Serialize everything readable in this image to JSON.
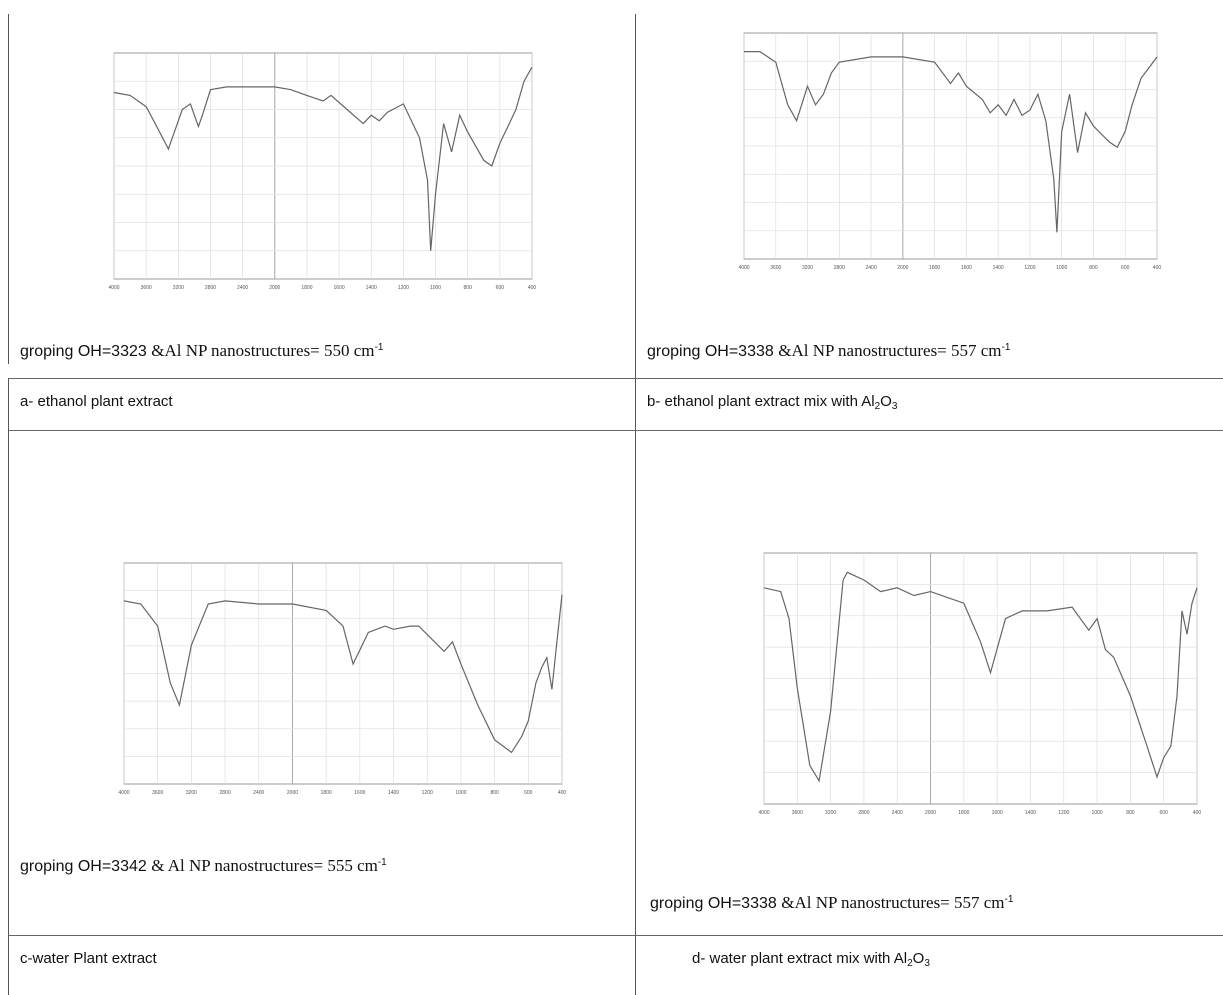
{
  "panels": [
    {
      "id": "a",
      "caption": {
        "prefix": "groping OH=3323",
        "mid": "&Al NP nanostructures= 550 cm",
        "sup": "-1"
      },
      "label": {
        "prefix": "a- ethanol plant extract",
        "sub": "",
        "suffix": ""
      }
    },
    {
      "id": "b",
      "caption": {
        "prefix": "groping OH=3338",
        "mid": "&Al NP nanostructures= 557 cm",
        "sup": "-1"
      },
      "label": {
        "prefix": "b- ethanol plant extract mix with Al",
        "sub": "2",
        "mid": "O",
        "sub2": "3"
      }
    },
    {
      "id": "c",
      "caption": {
        "prefix": "groping OH=3342 ",
        "mid": "& Al NP nanostructures= 555 cm",
        "sup": "-1"
      },
      "label": {
        "prefix": "c-water Plant extract",
        "sub": "",
        "suffix": ""
      }
    },
    {
      "id": "d",
      "caption": {
        "prefix": "groping OH=3338",
        "mid": "&Al NP nanostructures= 557 cm",
        "sup": "-1"
      },
      "label": {
        "prefix": "d- water  plant extract mix with Al",
        "sub": "2",
        "mid": "O",
        "sub2": "3"
      }
    }
  ],
  "chart_data": [
    {
      "type": "line",
      "panel": "a",
      "xlim": [
        4000,
        400
      ],
      "x_ticks": [
        "4000",
        "3600",
        "3200",
        "2800",
        "2400",
        "2000",
        "1800",
        "1600",
        "1400",
        "1200",
        "1000",
        "800",
        "600",
        "400"
      ],
      "x": [
        4000,
        3800,
        3600,
        3450,
        3323,
        3150,
        3050,
        2950,
        2900,
        2800,
        2600,
        2000,
        1900,
        1800,
        1700,
        1650,
        1550,
        1450,
        1400,
        1350,
        1300,
        1200,
        1100,
        1050,
        1030,
        1000,
        950,
        900,
        850,
        800,
        700,
        650,
        600,
        550,
        500,
        450,
        400
      ],
      "y": [
        96,
        95,
        91,
        83,
        76,
        90,
        92,
        84,
        88,
        97,
        98,
        98,
        97,
        95,
        93,
        95,
        90,
        85,
        88,
        86,
        89,
        92,
        80,
        65,
        40,
        60,
        85,
        75,
        88,
        82,
        72,
        70,
        78,
        84,
        90,
        100,
        105
      ],
      "ylim": [
        30,
        110
      ]
    },
    {
      "type": "line",
      "panel": "b",
      "xlim": [
        4000,
        400
      ],
      "x_ticks": [
        "4000",
        "3600",
        "3200",
        "2800",
        "2400",
        "2000",
        "1800",
        "1600",
        "1400",
        "1200",
        "1000",
        "800",
        "600",
        "400"
      ],
      "x": [
        4000,
        3800,
        3600,
        3450,
        3338,
        3200,
        3100,
        3000,
        2900,
        2800,
        2400,
        2000,
        1800,
        1700,
        1650,
        1600,
        1500,
        1450,
        1400,
        1350,
        1300,
        1250,
        1200,
        1150,
        1100,
        1050,
        1030,
        1000,
        950,
        900,
        850,
        800,
        700,
        650,
        600,
        557,
        500,
        450,
        400
      ],
      "y": [
        108,
        108,
        104,
        88,
        82,
        95,
        88,
        92,
        100,
        104,
        106,
        106,
        104,
        96,
        100,
        95,
        90,
        85,
        88,
        84,
        90,
        84,
        86,
        92,
        82,
        60,
        40,
        78,
        92,
        70,
        85,
        80,
        74,
        72,
        78,
        88,
        98,
        102,
        106
      ],
      "ylim": [
        30,
        115
      ]
    },
    {
      "type": "line",
      "panel": "c",
      "xlim": [
        4000,
        400
      ],
      "x_ticks": [
        "4000",
        "3600",
        "3200",
        "2800",
        "2400",
        "2000",
        "1800",
        "1600",
        "1400",
        "1200",
        "1000",
        "800",
        "600",
        "400"
      ],
      "x": [
        4000,
        3800,
        3600,
        3450,
        3342,
        3200,
        3000,
        2800,
        2400,
        2000,
        1800,
        1700,
        1640,
        1550,
        1450,
        1400,
        1300,
        1250,
        1100,
        1050,
        1000,
        900,
        800,
        700,
        640,
        600,
        555,
        520,
        490,
        460,
        430,
        400
      ],
      "y": [
        88,
        87,
        80,
        62,
        55,
        74,
        87,
        88,
        87,
        87,
        85,
        80,
        68,
        78,
        80,
        79,
        80,
        80,
        72,
        75,
        68,
        55,
        44,
        40,
        45,
        50,
        62,
        67,
        70,
        60,
        75,
        90
      ],
      "ylim": [
        30,
        100
      ]
    },
    {
      "type": "line",
      "panel": "d",
      "xlim": [
        4000,
        400
      ],
      "x_ticks": [
        "4000",
        "3600",
        "3200",
        "2800",
        "2400",
        "2000",
        "1800",
        "1600",
        "1400",
        "1200",
        "1000",
        "800",
        "600",
        "400"
      ],
      "x": [
        4000,
        3800,
        3700,
        3600,
        3450,
        3338,
        3200,
        3050,
        3000,
        2900,
        2800,
        2600,
        2400,
        2200,
        2000,
        1800,
        1700,
        1640,
        1550,
        1450,
        1300,
        1150,
        1050,
        1000,
        950,
        900,
        800,
        700,
        640,
        600,
        557,
        520,
        490,
        460,
        430,
        400
      ],
      "y": [
        96,
        95,
        88,
        70,
        50,
        46,
        64,
        98,
        100,
        99,
        98,
        95,
        96,
        94,
        95,
        92,
        82,
        74,
        88,
        90,
        90,
        91,
        85,
        88,
        80,
        78,
        68,
        55,
        47,
        52,
        55,
        68,
        90,
        84,
        92,
        96
      ],
      "ylim": [
        40,
        105
      ]
    }
  ]
}
